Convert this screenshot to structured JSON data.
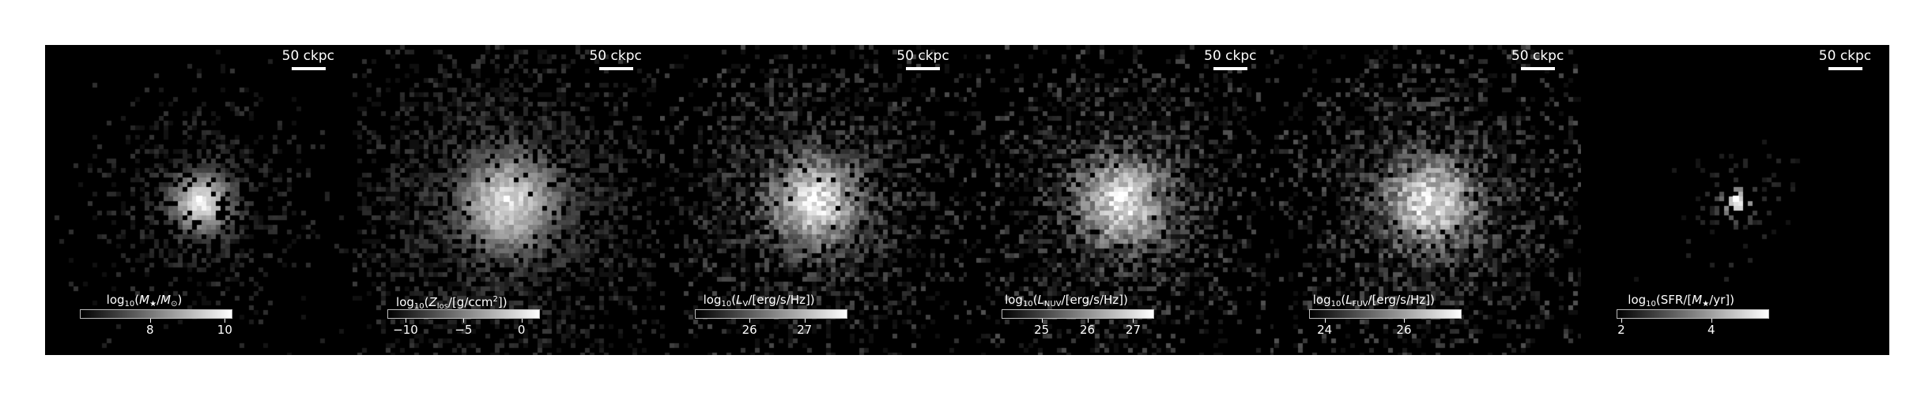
{
  "scalebar_label": "50 ckpc",
  "panels": [
    {
      "id": "stellar-mass",
      "label_html": "log<sub>10</sub>(<i>M</i><sub>★</sub>/<i>M</i><sub>⊙</sub>)",
      "ticks": [
        {
          "label": "8",
          "frac": 0.46
        },
        {
          "label": "10",
          "frac": 0.95
        }
      ],
      "halo_radius": 72,
      "halo_density": 0.46,
      "peak_brightness": 1.0,
      "noise": 0.18
    },
    {
      "id": "metallicity",
      "label_html": "log<sub>10</sub>(<i>Z</i><sub>los</sub>/[g/ccm<sup>2</sup>])",
      "ticks": [
        {
          "label": "−10",
          "frac": 0.12
        },
        {
          "label": "−5",
          "frac": 0.5
        },
        {
          "label": "0",
          "frac": 0.88
        }
      ],
      "halo_radius": 120,
      "halo_density": 0.62,
      "peak_brightness": 0.92,
      "noise": 0.22
    },
    {
      "id": "v-band",
      "label_html": "log<sub>10</sub>(<i>L</i><sub>V</sub>/[erg/s/Hz])",
      "ticks": [
        {
          "label": "26",
          "frac": 0.36
        },
        {
          "label": "27",
          "frac": 0.72
        }
      ],
      "halo_radius": 110,
      "halo_density": 0.6,
      "peak_brightness": 0.95,
      "noise": 0.35
    },
    {
      "id": "nuv",
      "label_html": "log<sub>10</sub>(<i>L</i><sub>NUV</sub>/[erg/s/Hz])",
      "ticks": [
        {
          "label": "25",
          "frac": 0.26
        },
        {
          "label": "26",
          "frac": 0.56
        },
        {
          "label": "27",
          "frac": 0.86
        }
      ],
      "halo_radius": 110,
      "halo_density": 0.62,
      "peak_brightness": 0.95,
      "noise": 0.4
    },
    {
      "id": "fuv",
      "label_html": "log<sub>10</sub>(<i>L</i><sub>FUV</sub>/[erg/s/Hz])",
      "ticks": [
        {
          "label": "24",
          "frac": 0.1
        },
        {
          "label": "26",
          "frac": 0.62
        }
      ],
      "halo_radius": 112,
      "halo_density": 0.63,
      "peak_brightness": 0.95,
      "noise": 0.42
    },
    {
      "id": "sfr",
      "label_html": "log<sub>10</sub>(SFR/[<i>M</i><sub>★</sub>/yr])",
      "ticks": [
        {
          "label": "2",
          "frac": 0.03
        },
        {
          "label": "4",
          "frac": 0.62
        }
      ],
      "halo_radius": 40,
      "halo_density": 0.18,
      "peak_brightness": 1.0,
      "noise": 0.1
    }
  ]
}
